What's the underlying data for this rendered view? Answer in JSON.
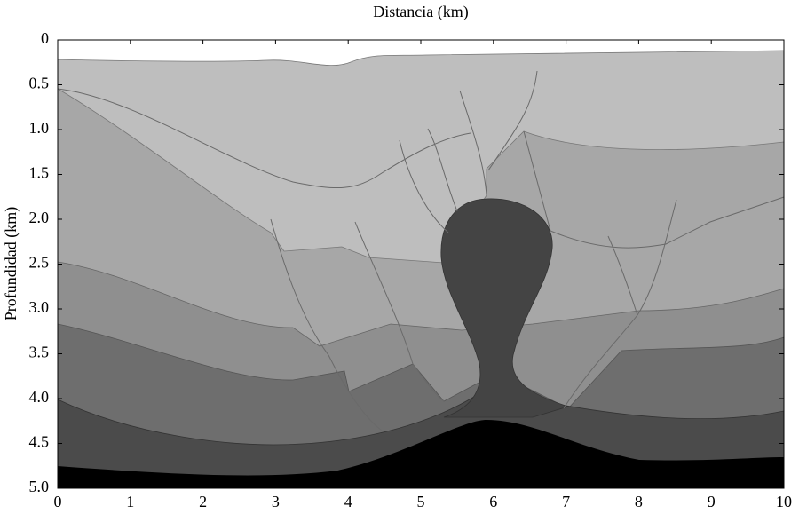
{
  "chart_data": {
    "type": "section",
    "x_label": "Distancia (km)",
    "y_label": "Profundidad (km)",
    "xlim": [
      0,
      10
    ],
    "ylim": [
      5,
      0
    ],
    "xticks": [
      0,
      1,
      2,
      3,
      4,
      5,
      6,
      7,
      8,
      9,
      10
    ],
    "yticks": [
      0,
      {
        "value": 0.5,
        "label": "0.5"
      },
      {
        "value": 1,
        "label": "1.0"
      },
      {
        "value": 1.5,
        "label": "1.5"
      },
      {
        "value": 2,
        "label": "2.0"
      },
      {
        "value": 2.5,
        "label": "2.5"
      },
      {
        "value": 3,
        "label": "3.0"
      },
      {
        "value": 3.5,
        "label": "3.5"
      },
      {
        "value": 4,
        "label": "4.0"
      },
      {
        "value": 4.5,
        "label": "4.5"
      },
      {
        "value": 5,
        "label": "5.0"
      }
    ]
  }
}
